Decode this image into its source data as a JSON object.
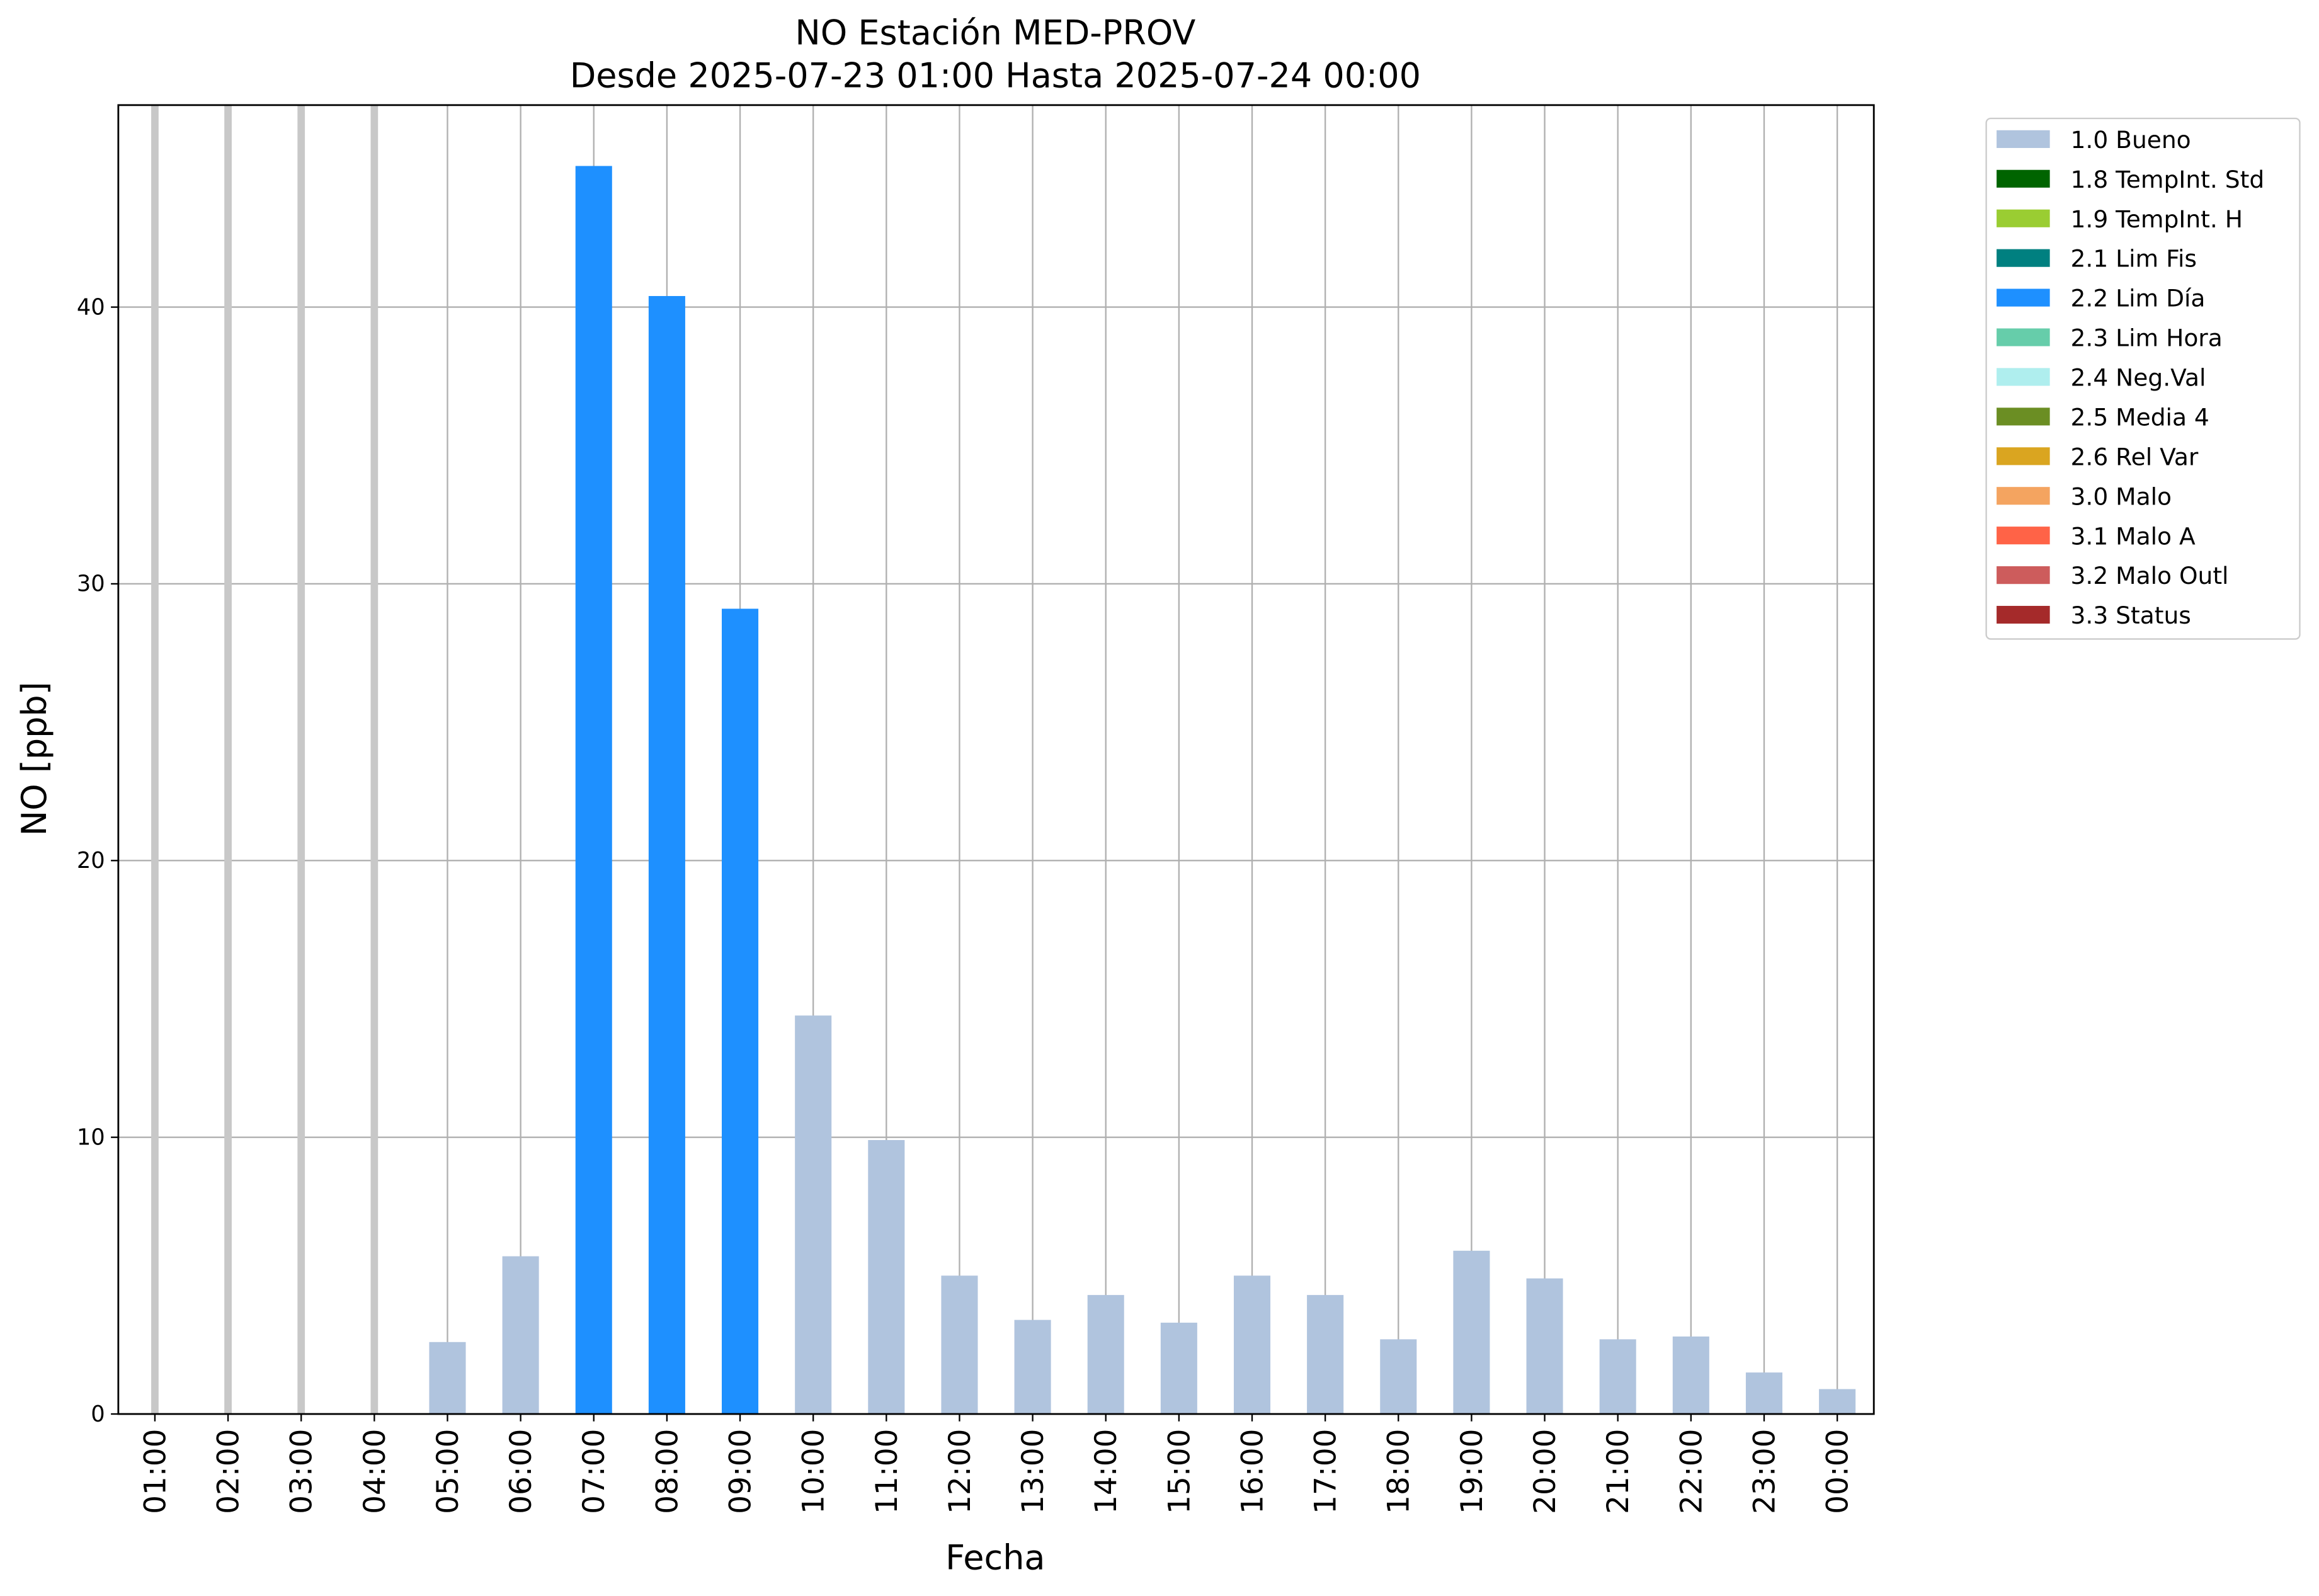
{
  "chart_data": {
    "type": "bar",
    "title": "NO Estación MED-PROV",
    "subtitle": "Desde 2025-07-23 01:00 Hasta 2025-07-24 00:00",
    "x_label": "Fecha",
    "y_label": "NO [ppb]",
    "categories": [
      "01:00",
      "02:00",
      "03:00",
      "04:00",
      "05:00",
      "06:00",
      "07:00",
      "08:00",
      "09:00",
      "10:00",
      "11:00",
      "12:00",
      "13:00",
      "14:00",
      "15:00",
      "16:00",
      "17:00",
      "18:00",
      "19:00",
      "20:00",
      "21:00",
      "22:00",
      "23:00",
      "00:00"
    ],
    "series": [
      {
        "name": "1.0 Bueno",
        "color": "#b0c4de",
        "values": [
          null,
          null,
          null,
          null,
          2.6,
          5.7,
          null,
          null,
          null,
          14.4,
          9.9,
          5.0,
          3.4,
          4.3,
          3.3,
          5.0,
          4.3,
          2.7,
          5.9,
          4.9,
          2.7,
          2.8,
          1.5,
          0.9
        ]
      },
      {
        "name": "1.8 TempInt. Std",
        "color": "#006400",
        "values": [
          null,
          null,
          null,
          null,
          null,
          null,
          null,
          null,
          null,
          null,
          null,
          null,
          null,
          null,
          null,
          null,
          null,
          null,
          null,
          null,
          null,
          null,
          null,
          null
        ]
      },
      {
        "name": "1.9 TempInt. H",
        "color": "#9acd32",
        "values": [
          null,
          null,
          null,
          null,
          null,
          null,
          null,
          null,
          null,
          null,
          null,
          null,
          null,
          null,
          null,
          null,
          null,
          null,
          null,
          null,
          null,
          null,
          null,
          null
        ]
      },
      {
        "name": "2.1 Lim Fis",
        "color": "#008080",
        "values": [
          null,
          null,
          null,
          null,
          null,
          null,
          null,
          null,
          null,
          null,
          null,
          null,
          null,
          null,
          null,
          null,
          null,
          null,
          null,
          null,
          null,
          null,
          null,
          null
        ]
      },
      {
        "name": "2.2 Lim Día",
        "color": "#1e90ff",
        "values": [
          null,
          null,
          null,
          null,
          null,
          null,
          45.1,
          40.4,
          29.1,
          null,
          null,
          null,
          null,
          null,
          null,
          null,
          null,
          null,
          null,
          null,
          null,
          null,
          null,
          null
        ]
      },
      {
        "name": "2.3 Lim Hora",
        "color": "#66cdaa",
        "values": [
          null,
          null,
          null,
          null,
          null,
          null,
          null,
          null,
          null,
          null,
          null,
          null,
          null,
          null,
          null,
          null,
          null,
          null,
          null,
          null,
          null,
          null,
          null,
          null
        ]
      },
      {
        "name": "2.4 Neg.Val",
        "color": "#afeeee",
        "values": [
          null,
          null,
          null,
          null,
          null,
          null,
          null,
          null,
          null,
          null,
          null,
          null,
          null,
          null,
          null,
          null,
          null,
          null,
          null,
          null,
          null,
          null,
          null,
          null
        ]
      },
      {
        "name": "2.5 Media 4",
        "color": "#6b8e23",
        "values": [
          null,
          null,
          null,
          null,
          null,
          null,
          null,
          null,
          null,
          null,
          null,
          null,
          null,
          null,
          null,
          null,
          null,
          null,
          null,
          null,
          null,
          null,
          null,
          null
        ]
      },
      {
        "name": "2.6 Rel Var",
        "color": "#daa520",
        "values": [
          null,
          null,
          null,
          null,
          null,
          null,
          null,
          null,
          null,
          null,
          null,
          null,
          null,
          null,
          null,
          null,
          null,
          null,
          null,
          null,
          null,
          null,
          null,
          null
        ]
      },
      {
        "name": "3.0 Malo",
        "color": "#f4a460",
        "values": [
          null,
          null,
          null,
          null,
          null,
          null,
          null,
          null,
          null,
          null,
          null,
          null,
          null,
          null,
          null,
          null,
          null,
          null,
          null,
          null,
          null,
          null,
          null,
          null
        ]
      },
      {
        "name": "3.1 Malo A",
        "color": "#ff6347",
        "values": [
          null,
          null,
          null,
          null,
          null,
          null,
          null,
          null,
          null,
          null,
          null,
          null,
          null,
          null,
          null,
          null,
          null,
          null,
          null,
          null,
          null,
          null,
          null,
          null
        ]
      },
      {
        "name": "3.2 Malo Outl",
        "color": "#cd5c5c",
        "values": [
          null,
          null,
          null,
          null,
          null,
          null,
          null,
          null,
          null,
          null,
          null,
          null,
          null,
          null,
          null,
          null,
          null,
          null,
          null,
          null,
          null,
          null,
          null,
          null
        ]
      },
      {
        "name": "3.3 Status",
        "color": "#a52a2a",
        "values": [
          null,
          null,
          null,
          null,
          null,
          null,
          null,
          null,
          null,
          null,
          null,
          null,
          null,
          null,
          null,
          null,
          null,
          null,
          null,
          null,
          null,
          null,
          null,
          null
        ]
      }
    ],
    "ylim": [
      0,
      47.3
    ],
    "yticks": [
      0,
      10,
      20,
      30,
      40
    ],
    "grid": true,
    "legend": "outside-upper-right"
  }
}
